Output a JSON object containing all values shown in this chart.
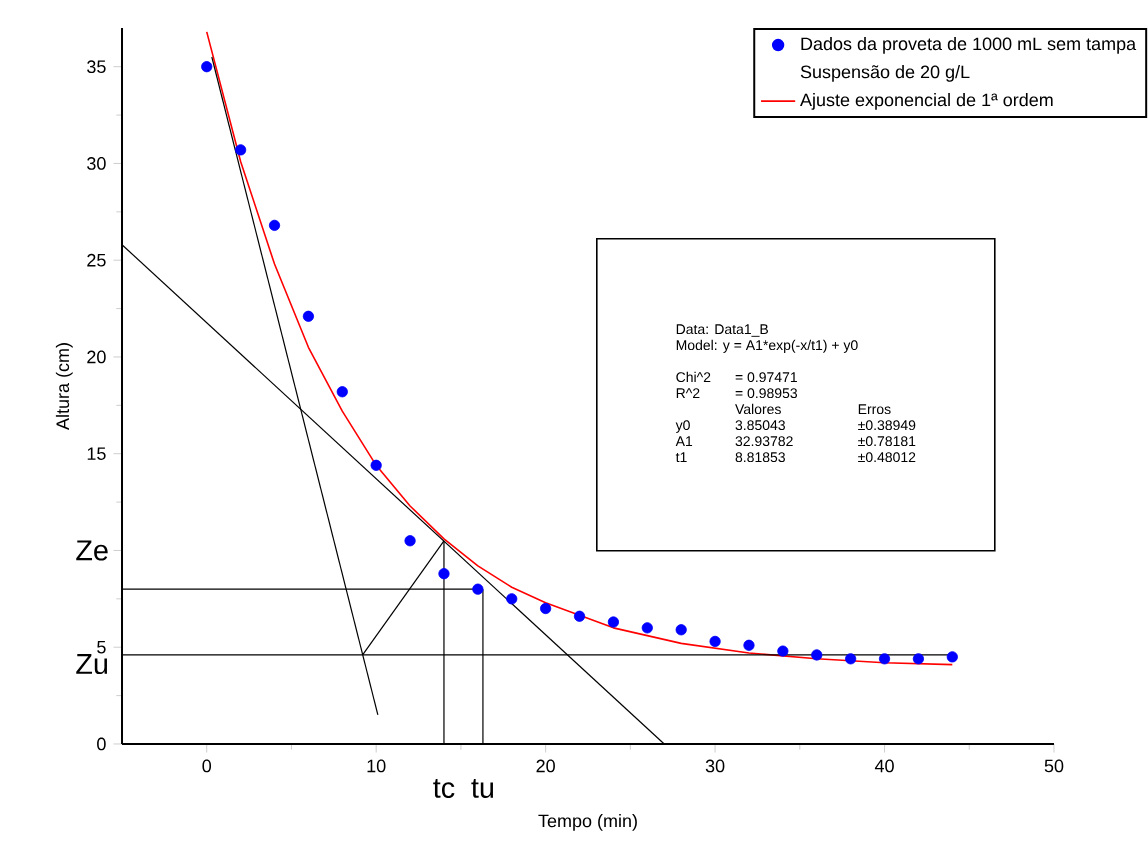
{
  "chart_data": {
    "type": "scatter",
    "xlabel": "Tempo (min)",
    "ylabel": "Altura (cm)",
    "xlim": [
      -5,
      50
    ],
    "ylim": [
      0,
      37
    ],
    "xticks": [
      0,
      10,
      20,
      30,
      40,
      50
    ],
    "yticks": [
      0,
      5,
      {
        "value": 10,
        "label": null
      },
      15,
      20,
      25,
      30,
      35
    ],
    "legend": "top right",
    "series": [
      {
        "name": "Dados da proveta de 1000 mL sem tampa",
        "type": "scatter",
        "marker": "circle",
        "color": "#0000ff",
        "x": [
          0,
          2,
          4,
          6,
          8,
          10,
          12,
          14,
          16,
          18,
          20,
          22,
          24,
          26,
          28,
          30,
          32,
          34,
          36,
          38,
          40,
          42,
          44
        ],
        "values": [
          35,
          30.7,
          26.8,
          22.1,
          18.2,
          14.4,
          10.5,
          8.8,
          8.0,
          7.5,
          7.0,
          6.6,
          6.3,
          6.0,
          5.9,
          5.3,
          5.1,
          4.8,
          4.6,
          4.4,
          4.4,
          4.4,
          4.5
        ]
      },
      {
        "name": "Ajuste exponencial de 1ª ordem",
        "type": "line",
        "marker": "none",
        "color": "#ff0000",
        "x": [
          0,
          2,
          4,
          6,
          8,
          10,
          12,
          14,
          16,
          18,
          20,
          24,
          28,
          32,
          36,
          40,
          44
        ],
        "values": [
          36.8,
          30.1,
          24.8,
          20.5,
          17.2,
          14.4,
          12.3,
          10.6,
          9.2,
          8.1,
          7.3,
          6.0,
          5.2,
          4.7,
          4.4,
          4.2,
          4.1
        ]
      },
      {
        "type": "line",
        "marker": "none",
        "color": "#000000",
        "x": [
          0.3,
          10.1
        ],
        "values": [
          35.5,
          1.5
        ]
      },
      {
        "type": "line",
        "marker": "none",
        "color": "#000000",
        "x": [
          -5,
          27
        ],
        "values": [
          25.8,
          0
        ]
      },
      {
        "type": "line",
        "marker": "none",
        "color": "#000000",
        "x": [
          -5,
          16.3
        ],
        "values": [
          8,
          8
        ]
      },
      {
        "type": "line",
        "marker": "none",
        "color": "#000000",
        "x": [
          -5,
          44
        ],
        "values": [
          4.6,
          4.6
        ]
      },
      {
        "type": "line",
        "marker": "none",
        "color": "#000000",
        "x": [
          14,
          14
        ],
        "values": [
          0,
          10.5
        ]
      },
      {
        "type": "line",
        "marker": "none",
        "color": "#000000",
        "x": [
          16.3,
          16.3
        ],
        "values": [
          0,
          8
        ]
      },
      {
        "type": "line",
        "marker": "none",
        "color": "#000000",
        "x": [
          9.2,
          14
        ],
        "values": [
          4.6,
          10.5
        ]
      }
    ],
    "annotations": [
      "Suspensão de 20 g/L",
      "Ze",
      {
        "text": "Zu",
        "x": -5,
        "y": 4.6
      },
      {
        "text": "tc",
        "x": 14,
        "y": 0
      },
      {
        "text": "tu",
        "x": 16.3,
        "y": 0
      },
      "Data: Data1_B",
      "Model: y = A1*exp(-x/t1) + y0",
      "Chi^2",
      "= 0.97471",
      "R^2",
      "= 0.98953",
      "Valores",
      "Erros",
      "y0",
      "3.85043",
      "±0.38949",
      "A1",
      "32.93782",
      "±0.78181",
      "t1",
      "8.81853",
      "±0.48012"
    ]
  }
}
